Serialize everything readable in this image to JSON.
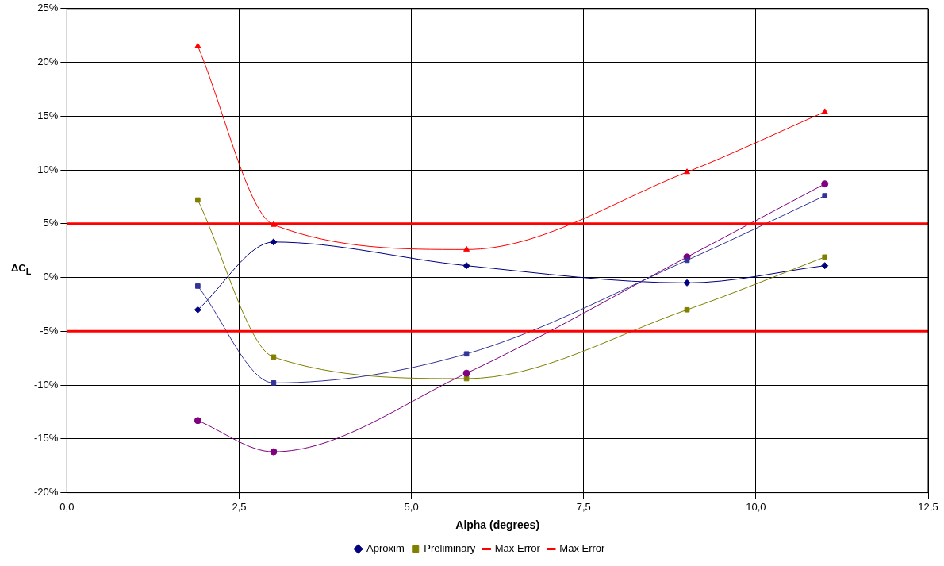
{
  "chart_data": {
    "type": "line",
    "xlabel": "Alpha (degrees)",
    "ylabel": "ΔC$_{L}$",
    "xlim": [
      0,
      12.5
    ],
    "xticks": [
      {
        "value": 0,
        "label": "0,0"
      },
      {
        "value": 2.5,
        "label": "2,5"
      },
      {
        "value": 5,
        "label": "5,0"
      },
      {
        "value": 7.5,
        "label": "7,5"
      },
      {
        "value": 10,
        "label": "10,0"
      },
      {
        "value": 12.5,
        "label": "12,5"
      }
    ],
    "ylim": [
      -20,
      25
    ],
    "yticks": [
      {
        "value": -20,
        "label": "-20%"
      },
      {
        "value": -15,
        "label": "-15%"
      },
      {
        "value": -10,
        "label": "-10%"
      },
      {
        "value": -5,
        "label": "-5%"
      },
      {
        "value": 0,
        "label": "0%"
      },
      {
        "value": 5,
        "label": "5%"
      },
      {
        "value": 10,
        "label": "10%"
      },
      {
        "value": 15,
        "label": "15%"
      },
      {
        "value": 20,
        "label": "20%"
      },
      {
        "value": 25,
        "label": "25%"
      }
    ],
    "grid": true,
    "legend": "bottom",
    "series": [
      {
        "name": "Aproxim",
        "color": "#000080",
        "marker": "diamond",
        "x": [
          1.9,
          3.0,
          5.8,
          9.0,
          11.0
        ],
        "values": [
          -3.0,
          3.3,
          1.1,
          -0.5,
          1.1
        ]
      },
      {
        "color": "#ff0000",
        "marker": "triangle",
        "x": [
          1.9,
          3.0,
          5.8,
          9.0,
          11.0
        ],
        "values": [
          21.5,
          4.9,
          2.6,
          9.8,
          15.4
        ]
      },
      {
        "name": "Preliminary",
        "color": "#808000",
        "marker": "square",
        "x": [
          1.9,
          3.0,
          5.8,
          9.0,
          11.0
        ],
        "values": [
          7.2,
          -7.4,
          -9.4,
          -3.0,
          1.9
        ]
      },
      {
        "color": "#800080",
        "marker": "circle",
        "x": [
          1.9,
          3.0,
          5.8,
          9.0,
          11.0
        ],
        "values": [
          -13.3,
          -16.2,
          -8.9,
          1.9,
          8.7
        ]
      },
      {
        "color": "#333399",
        "marker": "square",
        "x": [
          1.9,
          3.0,
          5.8,
          9.0,
          11.0
        ],
        "values": [
          -0.8,
          -9.8,
          -7.1,
          1.6,
          7.6
        ]
      },
      {
        "name": "Max Error",
        "color": "#ff0000",
        "marker": "none",
        "x": [
          0,
          12.5
        ],
        "values": [
          5,
          5
        ]
      },
      {
        "name": "Max Error",
        "color": "#ff0000",
        "marker": "none",
        "x": [
          0,
          12.5
        ],
        "values": [
          -5,
          -5
        ]
      }
    ]
  }
}
